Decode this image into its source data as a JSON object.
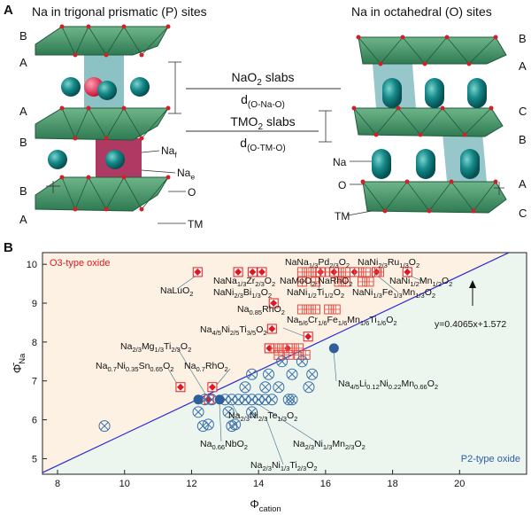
{
  "panel_a": {
    "label": "A",
    "left_title": "Na in trigonal prismatic (P) sites",
    "right_title": "Na in octahedral (O) sites",
    "left_layers": [
      "B",
      "A",
      "A",
      "B",
      "B",
      "A"
    ],
    "right_layers": [
      "B",
      "A",
      "C",
      "B",
      "A",
      "C"
    ],
    "slab_labels": [
      [
        "NaO",
        "2",
        " slabs"
      ],
      [
        "d",
        "(O-Na-O)"
      ],
      [
        "TMO",
        "2",
        " slabs"
      ],
      [
        "d",
        "(O-TM-O)"
      ]
    ],
    "left_labels": [
      [
        "Na",
        "f"
      ],
      [
        "Na",
        "e"
      ],
      [
        "O"
      ],
      [
        "TM"
      ]
    ],
    "right_labels": [
      [
        "Na"
      ],
      [
        "O"
      ],
      [
        "TM"
      ]
    ]
  },
  "chart_data": {
    "type": "scatter",
    "panel_label": "B",
    "xlabel": [
      "Φ",
      "cation"
    ],
    "ylabel": [
      "Φ̄",
      "Na"
    ],
    "xlim": [
      7.55,
      22
    ],
    "ylim": [
      4.6,
      10.3
    ],
    "xticks": [
      8,
      10,
      12,
      14,
      16,
      18,
      20
    ],
    "yticks": [
      5,
      6,
      7,
      8,
      9,
      10
    ],
    "series": [
      {
        "marker": "diamond-square",
        "color": "#e0191e",
        "x": [
          12.18,
          13.39,
          13.82,
          14.1,
          15.85,
          16.25,
          16.86,
          17.52,
          18.44,
          14.45,
          14.4,
          15.48,
          14.32,
          14.87,
          11.67,
          12.62,
          12.52
        ],
        "values": [
          9.8,
          9.8,
          9.8,
          9.8,
          9.8,
          9.8,
          9.8,
          9.8,
          9.8,
          9.0,
          8.34,
          8.14,
          7.84,
          7.84,
          6.84,
          6.84,
          6.52
        ]
      },
      {
        "marker": "cross-square",
        "color": "#e8473f",
        "x": [
          15.3,
          15.5,
          15.7,
          16.0,
          16.4,
          16.6,
          17.0,
          17.2,
          17.6,
          15.3,
          15.7,
          16.4,
          16.6,
          17.1,
          17.3,
          15.3,
          15.5,
          15.7,
          16.1,
          16.3,
          14.5,
          14.7,
          15.0,
          15.2,
          14.6,
          14.9,
          15.2,
          15.4
        ],
        "values": [
          9.8,
          9.8,
          9.8,
          9.8,
          9.8,
          9.8,
          9.8,
          9.8,
          9.8,
          9.55,
          9.55,
          9.55,
          9.55,
          9.55,
          9.55,
          8.84,
          8.84,
          8.84,
          8.84,
          8.84,
          7.84,
          7.84,
          7.84,
          7.84,
          7.67,
          7.67,
          7.67,
          7.67
        ]
      },
      {
        "marker": "x-circle",
        "color": "#3a6fa8",
        "x": [
          12.4,
          12.6,
          13.0,
          13.2,
          13.4,
          13.6,
          13.8,
          14.0,
          14.2,
          14.4,
          14.9,
          15.0,
          13.6,
          14.2,
          14.6,
          15.5,
          13.8,
          14.3,
          15.0,
          15.6,
          14.7,
          15.3,
          12.2,
          13.1,
          13.8,
          12.5,
          13.3,
          9.4,
          12.34,
          13.2
        ],
        "values": [
          6.52,
          6.52,
          6.52,
          6.52,
          6.52,
          6.52,
          6.52,
          6.52,
          6.52,
          6.52,
          6.52,
          6.52,
          6.84,
          6.84,
          6.84,
          6.84,
          7.17,
          7.17,
          7.17,
          7.17,
          7.5,
          7.5,
          6.2,
          6.2,
          6.2,
          5.88,
          5.88,
          5.84,
          5.84,
          5.84
        ]
      },
      {
        "marker": "filled-circle",
        "color": "#2f5f99",
        "x": [
          16.25,
          12.84,
          12.2
        ],
        "values": [
          7.84,
          6.52,
          6.52
        ]
      }
    ],
    "fit_line": {
      "slope": 0.4065,
      "intercept": 1.572,
      "color": "#2b2bd6"
    },
    "annotations": [
      {
        "parts": [
          "NaLuO",
          "2"
        ]
      },
      {
        "parts": [
          "NaNa",
          "1/3",
          "Zr",
          "2/3",
          "O",
          "2"
        ]
      },
      {
        "parts": [
          "NaNi",
          "2/3",
          "Bi",
          "1/3",
          "O",
          "2"
        ]
      },
      {
        "parts": [
          "NaNa",
          "1/3",
          "Pd",
          "2/3",
          "O",
          "2"
        ]
      },
      {
        "parts": [
          "NaMoO",
          "2",
          ",NaRhO",
          "2"
        ]
      },
      {
        "parts": [
          "NaNi",
          "1/2",
          "Ti",
          "1/2",
          "O",
          "2"
        ]
      },
      {
        "parts": [
          "NaNi",
          "2/3",
          "Ru",
          "1/3",
          "O",
          "2"
        ]
      },
      {
        "parts": [
          "NaNi",
          "1/2",
          "Mn",
          "1/2",
          "O",
          "2"
        ]
      },
      {
        "parts": [
          "NaNi",
          "1/3",
          "Fe",
          "1/3",
          "Mn",
          "1/3",
          "O",
          "2"
        ]
      },
      {
        "parts": [
          "Na",
          "0.85",
          "RhO",
          "2"
        ]
      },
      {
        "parts": [
          "Na",
          "5/6",
          "Cr",
          "1/6",
          "Fe",
          "1/6",
          "Mn",
          "1/6",
          "Ti",
          "1/6",
          "O",
          "2"
        ]
      },
      {
        "parts": [
          "Na",
          "4/5",
          "Ni",
          "2/5",
          "Ti",
          "3/5",
          "O",
          "2"
        ]
      },
      {
        "parts": [
          "Na",
          "2/3",
          "Mg",
          "1/3",
          "Ti",
          "2/3",
          "O",
          "2"
        ]
      },
      {
        "parts": [
          "Na",
          "0.7",
          "Ni",
          "0.35",
          "Sn",
          "0.65",
          "O",
          "2"
        ]
      },
      {
        "parts": [
          "Na",
          "0.7",
          "RhO",
          "2"
        ]
      },
      {
        "parts": [
          "y=0.4065x+1.572"
        ]
      },
      {
        "parts": [
          "Na",
          "4/5",
          "Li",
          "0.12",
          "Ni",
          "0.22",
          "Mn",
          "0.66",
          "O",
          "2"
        ]
      },
      {
        "parts": [
          "Na",
          "2/3",
          "Ni",
          "2/3",
          "Te",
          "1/3",
          "O",
          "2"
        ]
      },
      {
        "parts": [
          "Na",
          "0.66",
          "NbO",
          "2"
        ]
      },
      {
        "parts": [
          "Na",
          "2/3",
          "Ni",
          "1/3",
          "Mn",
          "2/3",
          "O",
          "2"
        ]
      },
      {
        "parts": [
          "Na",
          "2/3",
          "Ni",
          "1/3",
          "Ti",
          "2/3",
          "O",
          "2"
        ]
      }
    ],
    "region_labels": [
      {
        "text": "O3-type oxide",
        "color": "#e0191e"
      },
      {
        "text": "P2-type oxide",
        "color": "#2a5ea8"
      }
    ]
  }
}
